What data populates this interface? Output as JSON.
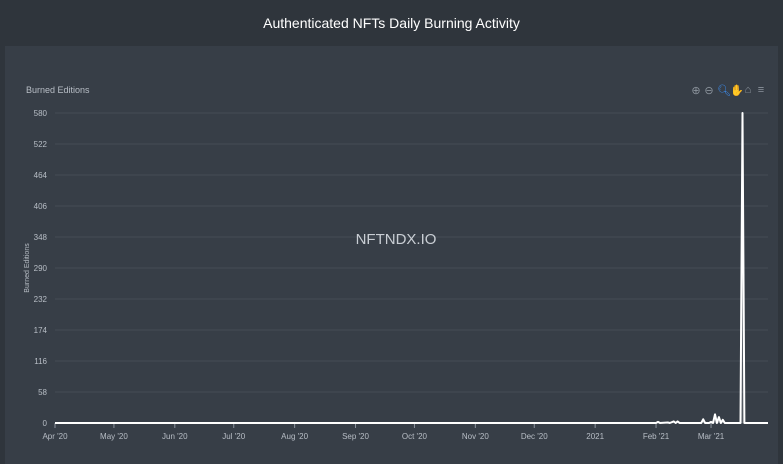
{
  "header": {
    "title": "Authenticated NFTs Daily Burning Activity"
  },
  "toolbar": {
    "icons": [
      "zoom-in-icon",
      "zoom-out-icon",
      "selection-zoom-icon",
      "pan-icon",
      "reset-home-icon",
      "menu-icon"
    ],
    "active_color": "#3d8ef0"
  },
  "chart_data": {
    "type": "area",
    "title": "Burned Editions",
    "ylabel": "Burned Editions",
    "xlabel": "",
    "watermark": "NFTNDX.IO",
    "ylim": [
      0,
      580
    ],
    "yticks": [
      0,
      58,
      116,
      174,
      232,
      290,
      348,
      406,
      464,
      522,
      580
    ],
    "xlim": [
      "2020-04-01",
      "2021-03-30"
    ],
    "xticks": [
      {
        "date": "2020-04-01",
        "label": "Apr '20"
      },
      {
        "date": "2020-05-01",
        "label": "May '20"
      },
      {
        "date": "2020-06-01",
        "label": "Jun '20"
      },
      {
        "date": "2020-07-01",
        "label": "Jul '20"
      },
      {
        "date": "2020-08-01",
        "label": "Aug '20"
      },
      {
        "date": "2020-09-01",
        "label": "Sep '20"
      },
      {
        "date": "2020-10-01",
        "label": "Oct '20"
      },
      {
        "date": "2020-11-01",
        "label": "Nov '20"
      },
      {
        "date": "2020-12-01",
        "label": "Dec '20"
      },
      {
        "date": "2021-01-01",
        "label": "2021"
      },
      {
        "date": "2021-02-01",
        "label": "Feb '21"
      },
      {
        "date": "2021-03-01",
        "label": "Mar '21"
      }
    ],
    "grid": true,
    "line_color": "#ffffff",
    "series": [
      {
        "points": [
          [
            "2020-04-01",
            0
          ],
          [
            "2021-02-01",
            0
          ],
          [
            "2021-02-02",
            2
          ],
          [
            "2021-02-03",
            0
          ],
          [
            "2021-02-07",
            1
          ],
          [
            "2021-02-08",
            0
          ],
          [
            "2021-02-10",
            3
          ],
          [
            "2021-02-11",
            0
          ],
          [
            "2021-02-12",
            3
          ],
          [
            "2021-02-13",
            0
          ],
          [
            "2021-02-24",
            0
          ],
          [
            "2021-02-25",
            7
          ],
          [
            "2021-02-26",
            0
          ],
          [
            "2021-02-28",
            0
          ],
          [
            "2021-03-01",
            2
          ],
          [
            "2021-03-02",
            0
          ],
          [
            "2021-03-03",
            16
          ],
          [
            "2021-03-04",
            0
          ],
          [
            "2021-03-05",
            11
          ],
          [
            "2021-03-06",
            0
          ],
          [
            "2021-03-07",
            6
          ],
          [
            "2021-03-08",
            0
          ],
          [
            "2021-03-16",
            0
          ],
          [
            "2021-03-17",
            580
          ],
          [
            "2021-03-18",
            0
          ],
          [
            "2021-03-30",
            0
          ]
        ]
      }
    ]
  }
}
